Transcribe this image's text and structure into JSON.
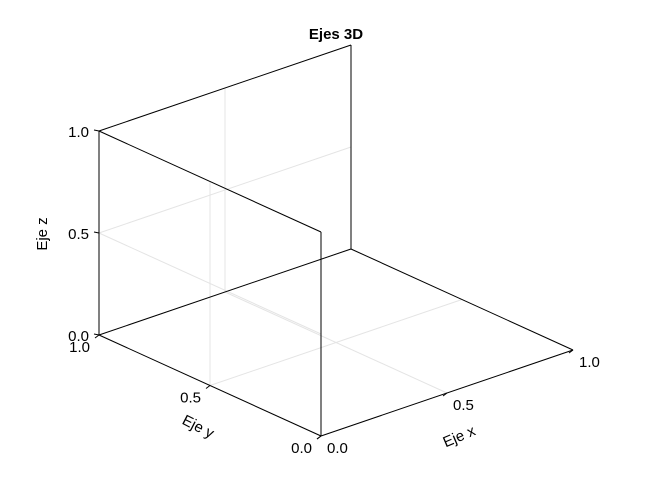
{
  "chart_data": {
    "type": "scatter",
    "projection": "3d",
    "title": "Ejes 3D",
    "xlabel": "Eje x",
    "ylabel": "Eje y",
    "zlabel": "Eje z",
    "xlim": [
      0.0,
      1.0
    ],
    "ylim": [
      0.0,
      1.0
    ],
    "zlim": [
      0.0,
      1.0
    ],
    "xticks": [
      "0.0",
      "0.5",
      "1.0"
    ],
    "yticks": [
      "0.0",
      "0.5",
      "1.0"
    ],
    "zticks": [
      "0.0",
      "0.5",
      "1.0"
    ],
    "grid": true,
    "series": []
  }
}
